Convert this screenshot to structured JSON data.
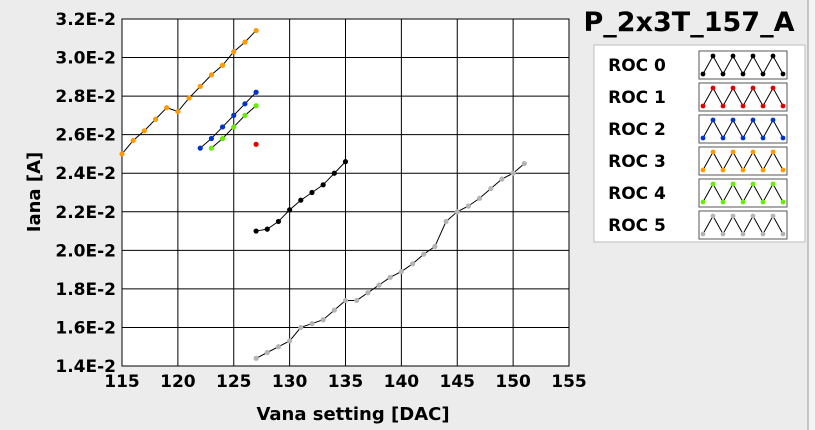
{
  "chart_data": {
    "type": "line",
    "title": "P_2x3T_157_A",
    "xlabel": "Vana setting [DAC]",
    "ylabel": "Iana [A]",
    "xlim": [
      115,
      155
    ],
    "ylim": [
      0.014,
      0.032
    ],
    "x_ticks": [
      115,
      120,
      125,
      130,
      135,
      140,
      145,
      150,
      155
    ],
    "x_tick_labels": [
      "115",
      "120",
      "125",
      "130",
      "135",
      "140",
      "145",
      "150",
      "155"
    ],
    "y_ticks": [
      0.014,
      0.016,
      0.018,
      0.02,
      0.022,
      0.024,
      0.026,
      0.028,
      0.03,
      0.032
    ],
    "y_tick_labels": [
      "1.4E-2",
      "1.6E-2",
      "1.8E-2",
      "2.0E-2",
      "2.2E-2",
      "2.4E-2",
      "2.6E-2",
      "2.8E-2",
      "3.0E-2",
      "3.2E-2"
    ],
    "grid": true,
    "legend_position": "right",
    "series": [
      {
        "name": "ROC 0",
        "color": "#000000",
        "line_color": "#000000",
        "x": [
          127,
          128,
          129,
          130,
          131,
          132,
          133,
          134,
          135
        ],
        "y": [
          0.021,
          0.0211,
          0.0215,
          0.0221,
          0.0226,
          0.023,
          0.0234,
          0.024,
          0.0246
        ]
      },
      {
        "name": "ROC 1",
        "color": "#e00000",
        "line_color": "#000000",
        "x": [
          127
        ],
        "y": [
          0.0255
        ]
      },
      {
        "name": "ROC 2",
        "color": "#0033cc",
        "line_color": "#000000",
        "x": [
          122,
          123,
          124,
          125,
          126,
          127
        ],
        "y": [
          0.0253,
          0.0258,
          0.0264,
          0.027,
          0.0276,
          0.0282
        ]
      },
      {
        "name": "ROC 3",
        "color": "#ff9900",
        "line_color": "#000000",
        "x": [
          115,
          116,
          117,
          118,
          119,
          120,
          121,
          122,
          123,
          124,
          125,
          126,
          127
        ],
        "y": [
          0.025,
          0.0257,
          0.0262,
          0.0268,
          0.0274,
          0.0272,
          0.0279,
          0.0285,
          0.0291,
          0.0296,
          0.0303,
          0.0308,
          0.0314
        ]
      },
      {
        "name": "ROC 4",
        "color": "#66ee00",
        "line_color": "#000000",
        "x": [
          123,
          124,
          125,
          126,
          127
        ],
        "y": [
          0.0253,
          0.0258,
          0.0264,
          0.027,
          0.0275
        ]
      },
      {
        "name": "ROC 5",
        "color": "#b4b4b4",
        "line_color": "#000000",
        "x": [
          127,
          128,
          129,
          130,
          131,
          132,
          133,
          134,
          135,
          136,
          137,
          138,
          139,
          140,
          141,
          142,
          143,
          144,
          145,
          146,
          147,
          148,
          149,
          150,
          151
        ],
        "y": [
          0.0144,
          0.0147,
          0.015,
          0.0153,
          0.016,
          0.0162,
          0.0164,
          0.0169,
          0.0174,
          0.0174,
          0.0178,
          0.0182,
          0.0186,
          0.0189,
          0.0193,
          0.0198,
          0.0202,
          0.0215,
          0.022,
          0.0223,
          0.0227,
          0.0232,
          0.0237,
          0.024,
          0.0245
        ]
      }
    ]
  }
}
